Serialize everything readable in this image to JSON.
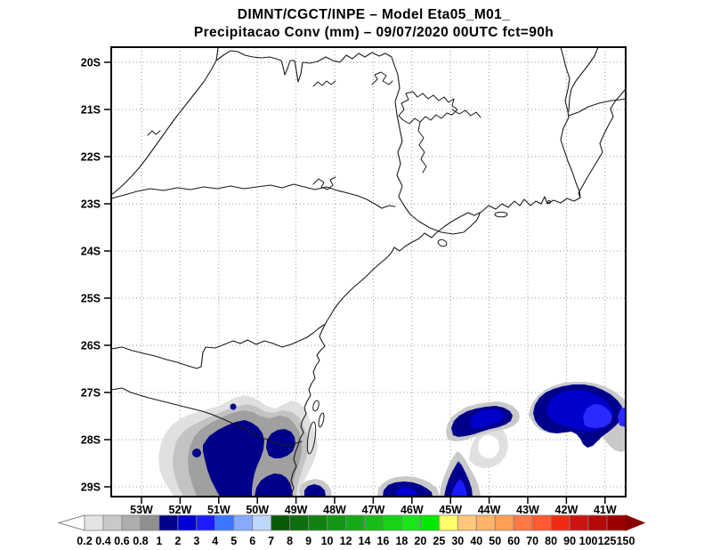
{
  "title": {
    "line1": "DIMNT/CGCT/INPE –  Model Eta05_M01_",
    "line2": "Precipitacao Conv (mm) – 09/07/2020 00UTC fct=90h"
  },
  "map": {
    "lat_labels": [
      "20S",
      "21S",
      "22S",
      "23S",
      "24S",
      "25S",
      "26S",
      "27S",
      "28S",
      "29S"
    ],
    "lon_labels": [
      "53W",
      "52W",
      "51W",
      "50W",
      "49W",
      "48W",
      "47W",
      "46W",
      "45W",
      "44W",
      "43W",
      "42W",
      "41W"
    ],
    "projection_extent": {
      "west": "53.8W",
      "east": "40.5W",
      "north": "19.7S",
      "south": "29.3S"
    },
    "line_color": "#1a1a1a",
    "grid_color": "#999999"
  },
  "colorbar": {
    "unit": "mm",
    "labels": [
      "0.2",
      "0.4",
      "0.6",
      "0.8",
      "1",
      "2",
      "3",
      "4",
      "5",
      "6",
      "7",
      "8",
      "9",
      "10",
      "12",
      "14",
      "16",
      "18",
      "20",
      "25",
      "30",
      "40",
      "50",
      "60",
      "70",
      "80",
      "90",
      "100",
      "125",
      "150"
    ],
    "colors": [
      "#E4E4E4",
      "#C9C9C9",
      "#ADADAD",
      "#909090",
      "#00008B",
      "#0000D2",
      "#1C1CFF",
      "#3C78FF",
      "#87AAFF",
      "#BED7FF",
      "#0A5A0A",
      "#0F6E0F",
      "#128112",
      "#149514",
      "#16A916",
      "#18BD18",
      "#1AD11A",
      "#1CE51C",
      "#00E800",
      "#FFFF69",
      "#FFC87D",
      "#FFB469",
      "#FFA055",
      "#FF7846",
      "#FF5A32",
      "#EE2C14",
      "#CC1414",
      "#B40A0A",
      "#9B0000"
    ],
    "arrow_left_color": "#FFFFFF",
    "arrow_right_color": "#8B0000"
  },
  "chart_data": {
    "type": "heatmap",
    "title": "Precipitacao Conv (mm) 09/07/2020 00UTC fct=90h",
    "legend_position": "bottom",
    "grid": "dotted 1-degree lat/lon",
    "precip_regions": [
      {
        "name": "rs-sc-inland-coast-cluster",
        "lon_range": "52.6W–48.8W",
        "lat_range": "27.9S–29.3S+",
        "max_band_mm": "1-2",
        "note": "large gray halo with broad navy core, clipped by bottom edge"
      },
      {
        "name": "coastal-blob-48.6W",
        "lon_range": "48.9W–48.1W",
        "lat_range": "29.1S–29.3S+",
        "max_band_mm": "1-2"
      },
      {
        "name": "ocean-blob-46W",
        "lon_range": "46.9W–45.4W",
        "lat_range": "28.9S–29.3S+",
        "max_band_mm": "2-3"
      },
      {
        "name": "ocean-blob-45W",
        "lon_range": "45.3W–44.3W",
        "lat_range": "28.4S–29.3S+",
        "max_band_mm": "3-4",
        "note": "triangular plume rising northward"
      },
      {
        "name": "weak-area-44.4W",
        "lon_range": "44.8W–43.8W",
        "lat_range": "27.8S–28.6S",
        "max_band_mm": "0.2-0.4",
        "note": "pale gray ring"
      },
      {
        "name": "ocean-band-west",
        "lon_range": "45.0W–42.9W",
        "lat_range": "27.2S–28.0S",
        "max_band_mm": "2-3",
        "note": "elongated band, navy with brighter core"
      },
      {
        "name": "ocean-band-east",
        "lon_range": "42.9W–40.5W",
        "lat_range": "27.0S–28.5S",
        "max_band_mm": "3-4",
        "note": "elongated band clipped by right frame edge"
      }
    ]
  }
}
